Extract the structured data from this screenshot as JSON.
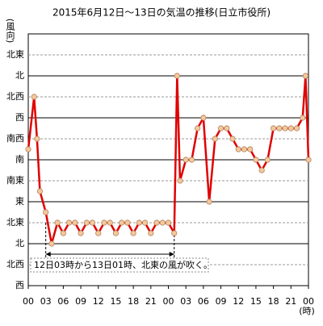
{
  "chart_data": {
    "type": "line",
    "title": "2015年6月12日～13日の気温の推移(日立市役所)",
    "y_label": "(風向)",
    "x_label": "(時)",
    "x": [
      0,
      1,
      1.5,
      2,
      3,
      4,
      5,
      6,
      7,
      8,
      9,
      10,
      11,
      12,
      13,
      14,
      15,
      16,
      17,
      18,
      19,
      20,
      21,
      22,
      23,
      24,
      25,
      25.5,
      26,
      27,
      28,
      29,
      30,
      31,
      32,
      33,
      34,
      35,
      36,
      37,
      38,
      39,
      40,
      41,
      42,
      43,
      44,
      45,
      46,
      47,
      47.5,
      48
    ],
    "series": [
      {
        "color": "#e00000",
        "marker_color": "#f5c89a",
        "values": [
          6.5,
          9,
          7,
          4.5,
          3.5,
          2,
          3,
          2.5,
          3,
          3,
          2.5,
          3,
          3,
          2.5,
          3,
          3,
          2.5,
          3,
          3,
          2.5,
          3,
          3,
          2.5,
          3,
          3,
          3,
          2.5,
          10,
          5,
          6,
          6,
          7.5,
          8,
          4,
          7,
          7.5,
          7.5,
          7,
          6.5,
          6.5,
          6.5,
          6,
          5.5,
          6,
          7.5,
          7.5,
          7.5,
          7.5,
          7.5,
          8,
          10,
          6
        ]
      }
    ],
    "xlim": [
      0,
      48
    ],
    "xticks": [
      {
        "value": 0,
        "label": "00"
      },
      {
        "value": 3,
        "label": "03"
      },
      {
        "value": 6,
        "label": "06"
      },
      {
        "value": 9,
        "label": "09"
      },
      12,
      15,
      18,
      21,
      {
        "value": 24,
        "label": "00"
      },
      {
        "value": 27,
        "label": "03"
      },
      {
        "value": 30,
        "label": "06"
      },
      {
        "value": 33,
        "label": "09"
      },
      {
        "value": 36,
        "label": "12"
      },
      {
        "value": 39,
        "label": "15"
      },
      {
        "value": 42,
        "label": "18"
      },
      {
        "value": 45,
        "label": "21"
      },
      {
        "value": 48,
        "label": "00"
      }
    ],
    "ylim": [
      0,
      12
    ],
    "yticks": [
      {
        "value": 0,
        "label": "西"
      },
      {
        "value": 1,
        "label": "北西"
      },
      {
        "value": 2,
        "label": "北"
      },
      {
        "value": 3,
        "label": "北東"
      },
      {
        "value": 4,
        "label": "東"
      },
      {
        "value": 5,
        "label": "南東"
      },
      {
        "value": 6,
        "label": "南"
      },
      {
        "value": 7,
        "label": "南西"
      },
      {
        "value": 8,
        "label": "西"
      },
      {
        "value": 9,
        "label": "北西"
      },
      {
        "value": 10,
        "label": "北"
      },
      {
        "value": 11,
        "label": "北東"
      }
    ],
    "grid": true,
    "annotation": {
      "text": "12日03時から13日01時、北東の風が吹く。",
      "span": [
        3,
        25
      ]
    }
  }
}
